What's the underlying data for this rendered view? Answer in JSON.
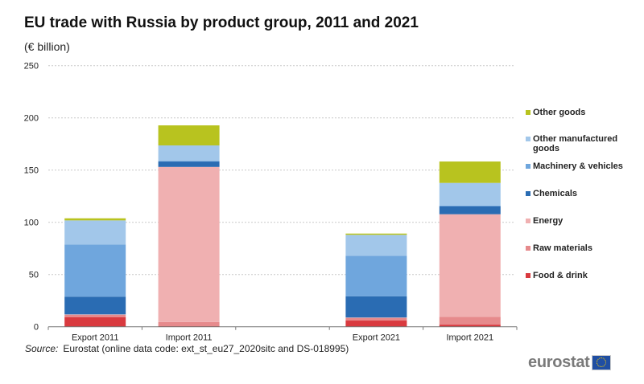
{
  "title": "EU trade with Russia by product group, 2011 and 2021",
  "unit": "(€ billion)",
  "source_label": "Source:",
  "source_text": "Eurostat (online data code: ext_st_eu27_2020sitc and DS-018995)",
  "logo": "eurostat",
  "chart_data": {
    "type": "bar",
    "stacked": true,
    "title": "EU trade with Russia by product group, 2011 and 2021",
    "ylabel": "(€ billion)",
    "ylim": [
      0,
      250
    ],
    "yticks": [
      0,
      50,
      100,
      150,
      200,
      250
    ],
    "grid": true,
    "legend_position": "right",
    "categories": [
      "Export 2011",
      "Import 2011",
      "",
      "Export 2021",
      "Import 2021"
    ],
    "series": [
      {
        "name": "Food & drink",
        "color": "#d93a3f",
        "values": [
          9.0,
          0.5,
          null,
          5.9,
          2.0
        ]
      },
      {
        "name": "Raw materials",
        "color": "#e68a8c",
        "values": [
          2.5,
          4.0,
          null,
          2.6,
          7.5
        ]
      },
      {
        "name": "Energy",
        "color": "#f0b0b1",
        "values": [
          0.3,
          148.5,
          null,
          0.3,
          98.2
        ]
      },
      {
        "name": "Chemicals",
        "color": "#2a6cb3",
        "values": [
          17.0,
          5.2,
          null,
          20.4,
          7.7
        ]
      },
      {
        "name": "Machinery & vehicles",
        "color": "#6fa6dd",
        "values": [
          50.0,
          0.6,
          null,
          38.8,
          0.6
        ]
      },
      {
        "name": "Other manufactured goods",
        "color": "#a2c7ea",
        "values": [
          23.0,
          14.8,
          null,
          20.0,
          21.7
        ]
      },
      {
        "name": "Other goods",
        "color": "#b8c31f",
        "values": [
          2.0,
          19.2,
          null,
          1.2,
          20.5
        ]
      }
    ]
  }
}
